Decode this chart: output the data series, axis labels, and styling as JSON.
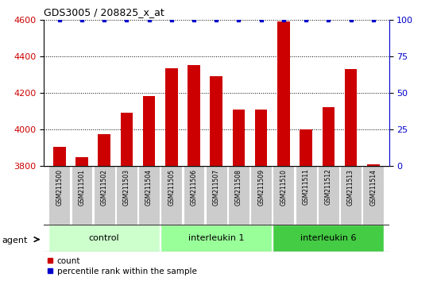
{
  "title": "GDS3005 / 208825_x_at",
  "samples": [
    "GSM211500",
    "GSM211501",
    "GSM211502",
    "GSM211503",
    "GSM211504",
    "GSM211505",
    "GSM211506",
    "GSM211507",
    "GSM211508",
    "GSM211509",
    "GSM211510",
    "GSM211511",
    "GSM211512",
    "GSM211513",
    "GSM211514"
  ],
  "counts": [
    3905,
    3848,
    3975,
    4090,
    4180,
    4335,
    4350,
    4290,
    4110,
    4110,
    4590,
    3998,
    4120,
    4330,
    3810
  ],
  "percentiles": [
    100,
    100,
    100,
    100,
    100,
    100,
    100,
    100,
    100,
    100,
    100,
    100,
    100,
    100,
    100
  ],
  "bar_color": "#cc0000",
  "dot_color": "#0000cc",
  "ylim_left": [
    3800,
    4600
  ],
  "ylim_right": [
    0,
    100
  ],
  "yticks_left": [
    3800,
    4000,
    4200,
    4400,
    4600
  ],
  "yticks_right": [
    0,
    25,
    50,
    75,
    100
  ],
  "groups": [
    {
      "label": "control",
      "start": 0,
      "end": 5,
      "color": "#ccffcc"
    },
    {
      "label": "interleukin 1",
      "start": 5,
      "end": 10,
      "color": "#99ff99"
    },
    {
      "label": "interleukin 6",
      "start": 10,
      "end": 15,
      "color": "#44cc44"
    }
  ],
  "agent_label": "agent",
  "legend_count_label": "count",
  "legend_percentile_label": "percentile rank within the sample",
  "tick_label_color": "#cc0000",
  "right_tick_color": "#0000cc",
  "grid_color": "#555555",
  "sample_bg_color": "#cccccc",
  "bar_width": 0.55,
  "figwidth": 5.5,
  "figheight": 3.54,
  "dpi": 100
}
